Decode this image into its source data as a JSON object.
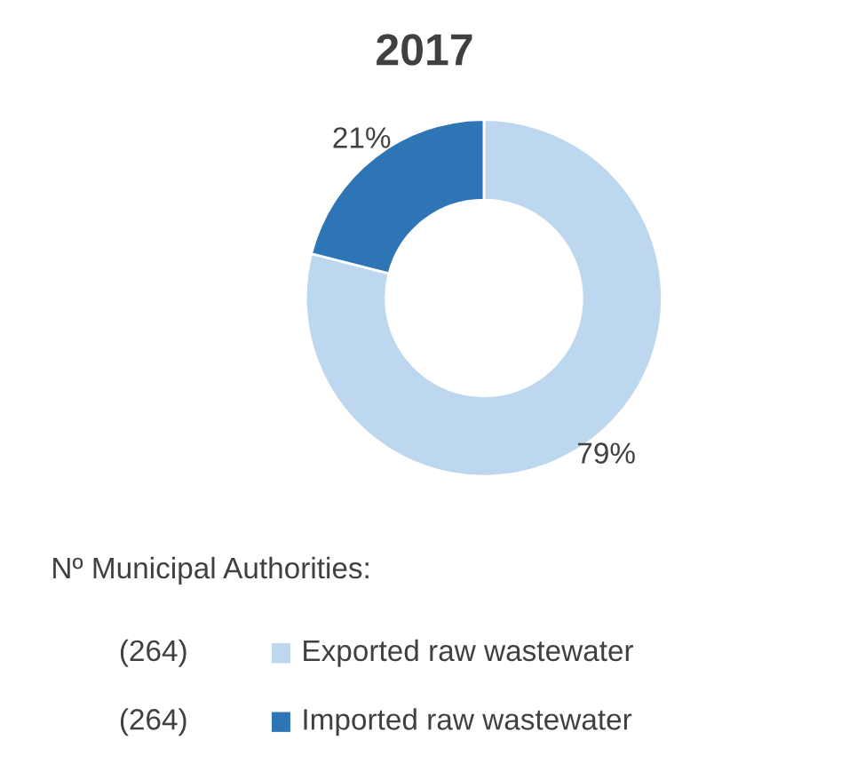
{
  "chart_data": {
    "type": "donut",
    "title": "2017",
    "categories": [
      "Exported raw wastewater",
      "Imported raw wastewater"
    ],
    "values": [
      79,
      21
    ],
    "colors": [
      "#bdd7ee",
      "#2e75b6"
    ],
    "value_labels": [
      "79%",
      "21%"
    ],
    "legend": "bottom left",
    "legend_title": "Nº Municipal Authorities:",
    "annotations": [
      "(264)",
      "(264)"
    ]
  }
}
